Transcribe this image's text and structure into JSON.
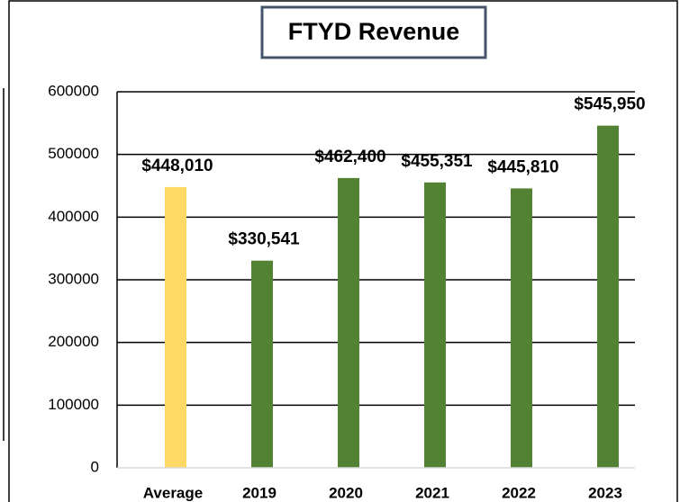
{
  "chart_data": {
    "type": "bar",
    "title": "FTYD  Revenue",
    "categories": [
      "Average",
      "2019",
      "2020",
      "2021",
      "2022",
      "2023"
    ],
    "values": [
      448010,
      330541,
      462400,
      455351,
      445810,
      545950
    ],
    "value_labels": [
      "$448,010",
      "$330,541",
      "$462,400",
      "$455,351",
      "$445,810",
      "$545,950"
    ],
    "colors": [
      "#ffd966",
      "#548235",
      "#548235",
      "#548235",
      "#548235",
      "#548235"
    ],
    "ylim": [
      0,
      600000
    ],
    "yticks": [
      0,
      100000,
      200000,
      300000,
      400000,
      500000,
      600000
    ],
    "grid": true
  }
}
